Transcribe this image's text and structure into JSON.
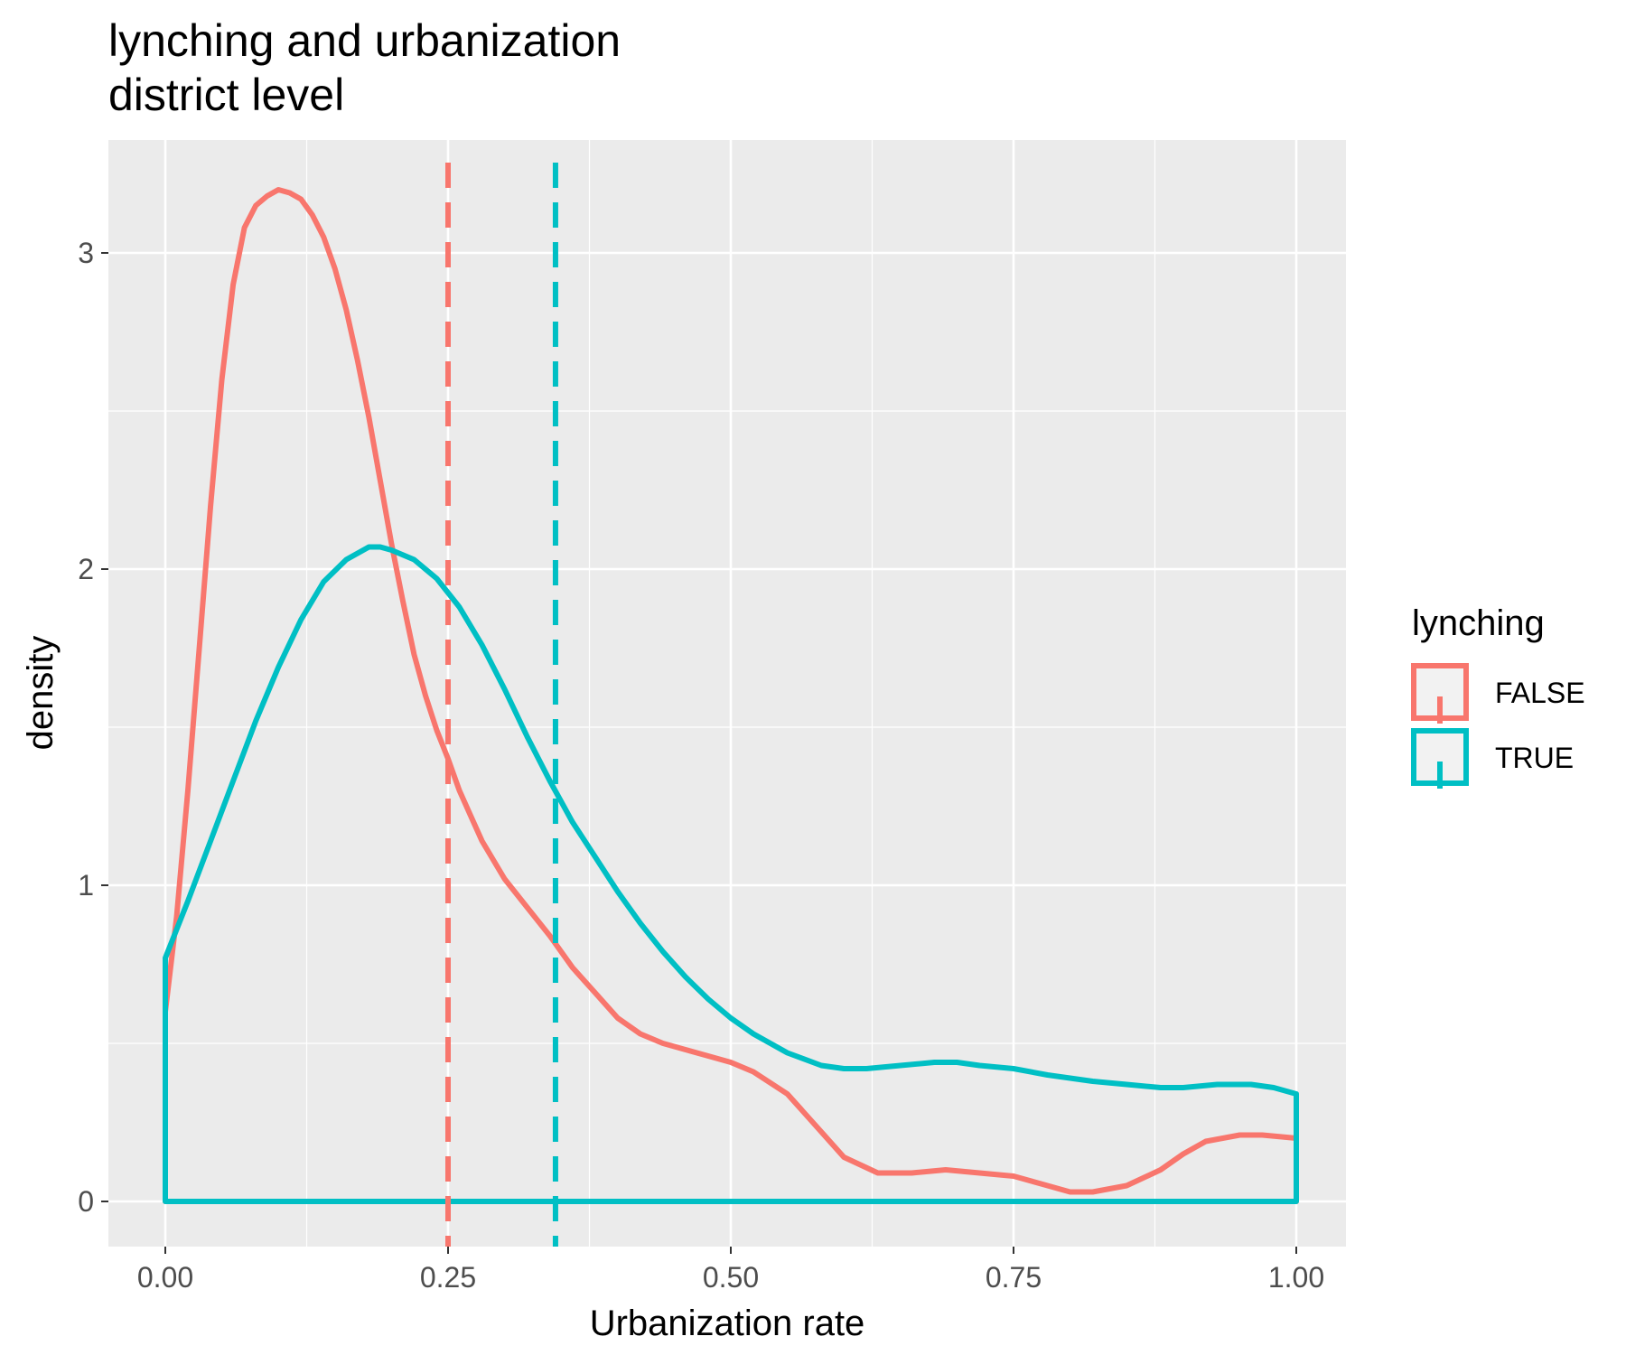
{
  "chart_data": {
    "type": "area",
    "title": "lynching and urbanization",
    "subtitle": "district level",
    "xlabel": "Urbanization rate",
    "ylabel": "density",
    "xlim": [
      -0.1,
      2.1
    ],
    "ylim": [
      -0.16,
      3.35
    ],
    "x_ticks": [
      0,
      0.25,
      0.5,
      0.75,
      1
    ],
    "x_tick_labels": [
      "0.00",
      "0.25",
      "0.50",
      "0.75",
      "1.00"
    ],
    "y_ticks": [
      0,
      1,
      2,
      3
    ],
    "y_tick_labels": [
      "0",
      "1",
      "2",
      "3"
    ],
    "grid": true,
    "legend": {
      "title": "lynching",
      "position": "right",
      "entries": [
        "FALSE",
        "TRUE"
      ]
    },
    "series": [
      {
        "name": "FALSE",
        "color": "#F8766D",
        "mean_line": 0.25,
        "x": [
          0,
          0.01,
          0.02,
          0.03,
          0.04,
          0.05,
          0.06,
          0.07,
          0.08,
          0.09,
          0.1,
          0.11,
          0.12,
          0.13,
          0.14,
          0.15,
          0.16,
          0.17,
          0.18,
          0.19,
          0.2,
          0.21,
          0.22,
          0.23,
          0.24,
          0.25,
          0.26,
          0.27,
          0.28,
          0.3,
          0.32,
          0.34,
          0.36,
          0.38,
          0.4,
          0.42,
          0.44,
          0.46,
          0.48,
          0.5,
          0.52,
          0.55,
          0.58,
          0.6,
          0.63,
          0.66,
          0.69,
          0.72,
          0.75,
          0.78,
          0.8,
          0.82,
          0.85,
          0.88,
          0.9,
          0.92,
          0.95,
          0.97,
          1.0
        ],
        "y": [
          0.6,
          0.9,
          1.3,
          1.75,
          2.2,
          2.6,
          2.9,
          3.08,
          3.15,
          3.18,
          3.2,
          3.19,
          3.17,
          3.12,
          3.05,
          2.95,
          2.82,
          2.66,
          2.48,
          2.28,
          2.08,
          1.9,
          1.73,
          1.6,
          1.49,
          1.4,
          1.3,
          1.22,
          1.14,
          1.02,
          0.93,
          0.84,
          0.74,
          0.66,
          0.58,
          0.53,
          0.5,
          0.48,
          0.46,
          0.44,
          0.41,
          0.34,
          0.22,
          0.14,
          0.09,
          0.09,
          0.1,
          0.09,
          0.08,
          0.05,
          0.03,
          0.03,
          0.05,
          0.1,
          0.15,
          0.19,
          0.21,
          0.21,
          0.2
        ]
      },
      {
        "name": "TRUE",
        "color": "#00BFC4",
        "mean_line": 0.345,
        "x": [
          0,
          0.02,
          0.04,
          0.06,
          0.08,
          0.1,
          0.12,
          0.14,
          0.16,
          0.18,
          0.19,
          0.2,
          0.22,
          0.24,
          0.26,
          0.28,
          0.3,
          0.32,
          0.34,
          0.36,
          0.38,
          0.4,
          0.42,
          0.44,
          0.46,
          0.48,
          0.5,
          0.52,
          0.55,
          0.58,
          0.6,
          0.62,
          0.65,
          0.68,
          0.7,
          0.72,
          0.75,
          0.78,
          0.8,
          0.82,
          0.85,
          0.88,
          0.9,
          0.93,
          0.96,
          0.98,
          1.0
        ],
        "y": [
          0.77,
          0.95,
          1.14,
          1.33,
          1.52,
          1.69,
          1.84,
          1.96,
          2.03,
          2.07,
          2.07,
          2.06,
          2.03,
          1.97,
          1.88,
          1.76,
          1.62,
          1.47,
          1.33,
          1.2,
          1.09,
          0.98,
          0.88,
          0.79,
          0.71,
          0.64,
          0.58,
          0.53,
          0.47,
          0.43,
          0.42,
          0.42,
          0.43,
          0.44,
          0.44,
          0.43,
          0.42,
          0.4,
          0.39,
          0.38,
          0.37,
          0.36,
          0.36,
          0.37,
          0.37,
          0.36,
          0.34
        ]
      }
    ]
  }
}
